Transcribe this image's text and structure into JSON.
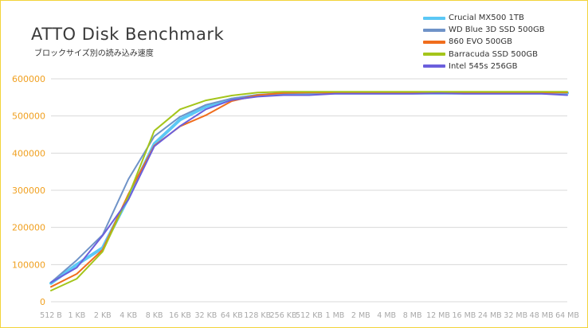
{
  "chart_data": {
    "type": "line",
    "title": "ATTO Disk Benchmark",
    "subtitle": "ブロックサイズ別の読み込み速度",
    "xlabel": "",
    "ylabel": "",
    "ylim": [
      0,
      600000
    ],
    "yticks": [
      "0",
      "100000",
      "200000",
      "300000",
      "400000",
      "500000",
      "600000"
    ],
    "grid": true,
    "legend": "top-right",
    "categories": [
      "512 B",
      "1 KB",
      "2 KB",
      "4 KB",
      "8 KB",
      "16 KB",
      "32 KB",
      "64 KB",
      "128 KB",
      "256 KB",
      "512 KB",
      "1 MB",
      "2 MB",
      "4 MB",
      "8 MB",
      "12 MB",
      "16 MB",
      "24 MB",
      "32 MB",
      "48 MB",
      "64 MB"
    ],
    "series": [
      {
        "name": "Crucial MX500 1TB",
        "color": "#5bc8f5",
        "width": 4,
        "values": [
          50000,
          100000,
          145000,
          280000,
          425000,
          490000,
          525000,
          545000,
          555000,
          560000,
          562000,
          562000,
          562000,
          562000,
          562000,
          562000,
          562000,
          562000,
          562000,
          562000,
          562000
        ]
      },
      {
        "name": "WD Blue 3D SSD 500GB",
        "color": "#6f93c8",
        "width": 2,
        "values": [
          52000,
          112000,
          180000,
          330000,
          445000,
          498000,
          530000,
          547000,
          557000,
          561000,
          562000,
          563000,
          563000,
          563000,
          563000,
          563000,
          563000,
          563000,
          563000,
          563000,
          563000
        ]
      },
      {
        "name": "860 EVO 500GB",
        "color": "#f06d1d",
        "width": 2,
        "values": [
          40000,
          75000,
          140000,
          290000,
          420000,
          472000,
          502000,
          540000,
          556000,
          562000,
          563000,
          563000,
          563000,
          563000,
          563000,
          563000,
          563000,
          563000,
          563000,
          563000,
          563000
        ]
      },
      {
        "name": "Barracuda SSD 500GB",
        "color": "#a4c51b",
        "width": 2,
        "values": [
          30000,
          62000,
          135000,
          285000,
          460000,
          518000,
          542000,
          555000,
          563000,
          565000,
          565000,
          565000,
          565000,
          565000,
          565000,
          565000,
          565000,
          565000,
          565000,
          565000,
          565000
        ]
      },
      {
        "name": "Intel 545s 256GB",
        "color": "#6b5fdc",
        "width": 2,
        "values": [
          52000,
          92000,
          178000,
          275000,
          418000,
          473000,
          518000,
          543000,
          552000,
          556000,
          556000,
          560000,
          560000,
          560000,
          560000,
          561000,
          560000,
          560000,
          560000,
          560000,
          556000
        ]
      }
    ]
  }
}
